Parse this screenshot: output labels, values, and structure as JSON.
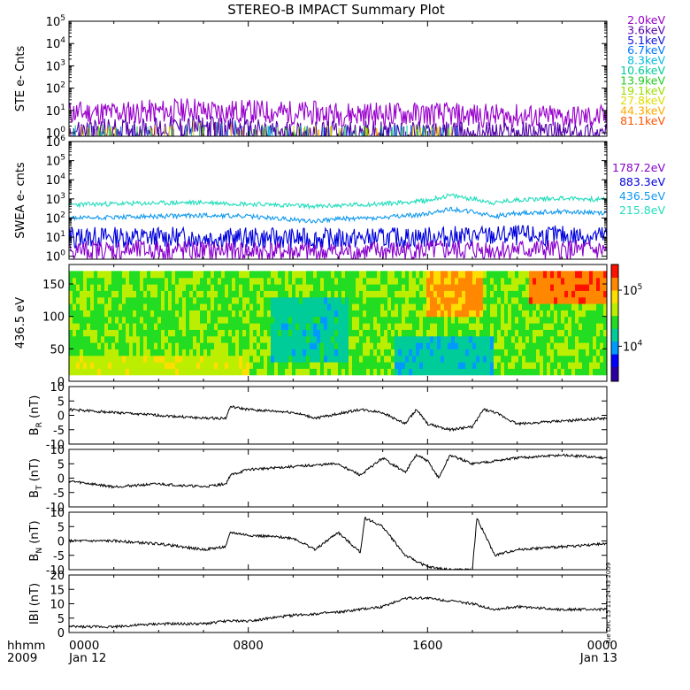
{
  "title": "STEREO-B IMPACT Summary Plot",
  "time_axis": {
    "row1_label": "hhmm",
    "row2_label": "2009",
    "ticks": [
      {
        "hhmm": "0000",
        "date": "Jan 12"
      },
      {
        "hhmm": "0800",
        "date": ""
      },
      {
        "hhmm": "1600",
        "date": ""
      },
      {
        "hhmm": "0000",
        "date": "Jan 13"
      }
    ],
    "range_hours": [
      0,
      24
    ]
  },
  "stamp": "Tue Dec 15 11:24:43 2009",
  "colors": {
    "frame": "#000000",
    "ste": [
      "#9900cc",
      "#5500aa",
      "#1111dd",
      "#0077ff",
      "#00bbdd",
      "#00cc99",
      "#22cc22",
      "#99dd00",
      "#dddd00",
      "#ffaa00",
      "#ff5500",
      "#cc0000"
    ],
    "swea": [
      "#8800cc",
      "#0000dd",
      "#1199ee",
      "#22ddbb"
    ],
    "colorbar": [
      "#2a00a0",
      "#0000ff",
      "#0099ff",
      "#00cc99",
      "#22dd22",
      "#bbee00",
      "#ffdd00",
      "#ff8800",
      "#ff1100"
    ]
  },
  "chart_data": [
    {
      "type": "line",
      "panel": "ste",
      "ylabel": "STE e- Cnts",
      "yscale": "log",
      "ylim": [
        0.7,
        100000
      ],
      "yticks": [
        {
          "base": "10",
          "exp": "0"
        },
        {
          "base": "10",
          "exp": "1"
        },
        {
          "base": "10",
          "exp": "2"
        },
        {
          "base": "10",
          "exp": "3"
        },
        {
          "base": "10",
          "exp": "4"
        },
        {
          "base": "10",
          "exp": "5"
        }
      ],
      "legend": [
        "2.0keV",
        "3.6keV",
        "5.1keV",
        "6.7keV",
        "8.3keV",
        "10.6keV",
        "13.9keV",
        "19.1keV",
        "27.8keV",
        "44.3keV",
        "81.1keV"
      ],
      "legend_colors": [
        "#9900cc",
        "#5500aa",
        "#1111dd",
        "#0077ff",
        "#00bbdd",
        "#00cc99",
        "#22cc22",
        "#99dd00",
        "#dddd00",
        "#ffaa00",
        "#ff5500"
      ],
      "series": [
        {
          "name": "2.0keV",
          "x": [
            0,
            2,
            4,
            5,
            5.5,
            6,
            8,
            10,
            12,
            14,
            16,
            18,
            20,
            22,
            24
          ],
          "y": [
            8,
            8,
            9,
            10,
            13,
            9,
            9,
            8,
            7,
            7,
            7,
            6,
            5.5,
            5,
            5
          ]
        },
        {
          "name": "3.6keV",
          "x": [
            0,
            2,
            4,
            6,
            8,
            10,
            12,
            14,
            16,
            18,
            20,
            22,
            24
          ],
          "y": [
            1.2,
            1.3,
            1.5,
            1.8,
            1.2,
            1,
            1,
            1,
            0.9,
            0.9,
            0.9,
            0.9,
            0.9
          ]
        }
      ]
    },
    {
      "type": "line",
      "panel": "swea",
      "ylabel": "SWEA e- cnts",
      "yscale": "log",
      "ylim": [
        0.7,
        1000000
      ],
      "yticks": [
        {
          "base": "10",
          "exp": "0"
        },
        {
          "base": "10",
          "exp": "1"
        },
        {
          "base": "10",
          "exp": "2"
        },
        {
          "base": "10",
          "exp": "3"
        },
        {
          "base": "10",
          "exp": "4"
        },
        {
          "base": "10",
          "exp": "5"
        },
        {
          "base": "10",
          "exp": "6"
        }
      ],
      "legend": [
        "1787.2eV",
        "883.3eV",
        "436.5eV",
        "215.8eV"
      ],
      "legend_colors": [
        "#8800cc",
        "#0000dd",
        "#1199ee",
        "#22ddbb"
      ],
      "series": [
        {
          "name": "215.8eV",
          "x": [
            0,
            2,
            4,
            6,
            8,
            10,
            11,
            12,
            14,
            16,
            17,
            18,
            19,
            20,
            22,
            24
          ],
          "y": [
            500,
            550,
            600,
            650,
            550,
            450,
            400,
            450,
            550,
            800,
            1500,
            1000,
            600,
            900,
            1100,
            900
          ]
        },
        {
          "name": "436.5eV",
          "x": [
            0,
            2,
            4,
            6,
            8,
            10,
            11,
            12,
            14,
            16,
            17,
            18,
            19,
            20,
            22,
            24
          ],
          "y": [
            100,
            110,
            120,
            140,
            120,
            80,
            70,
            90,
            100,
            160,
            300,
            200,
            120,
            180,
            220,
            180
          ]
        },
        {
          "name": "883.3eV",
          "x": [
            0,
            4,
            8,
            12,
            16,
            20,
            24
          ],
          "y": [
            10,
            10,
            9,
            8,
            10,
            12,
            11
          ]
        },
        {
          "name": "1787.2eV",
          "x": [
            0,
            4,
            8,
            12,
            16,
            20,
            24
          ],
          "y": [
            2,
            2,
            1.8,
            1.6,
            2,
            2.2,
            2
          ]
        }
      ]
    },
    {
      "type": "heatmap",
      "panel": "pad",
      "ylabel": "436.5 eV",
      "ylim": [
        0,
        180
      ],
      "yticks": [
        "0",
        "50",
        "100",
        "150"
      ],
      "colorbar": {
        "scale": "log",
        "ticks": [
          {
            "base": "10",
            "exp": "4"
          },
          {
            "base": "10",
            "exp": "5"
          }
        ]
      },
      "features": "pitch angle 10-170 deg; mostly green (~5e4), blue depletion near 90 deg around 10-11h, yellow-red near 180 deg at 17h and 21-24h"
    },
    {
      "type": "line",
      "panel": "br",
      "ylabel": "B",
      "ylabel_sub": "R",
      "yunit": "(nT)",
      "ylim": [
        -10,
        10
      ],
      "yticks": [
        "10",
        "5",
        "0",
        "-5",
        "-10"
      ],
      "series": [
        {
          "name": "",
          "x": [
            0,
            2,
            4,
            6,
            7,
            7.2,
            8,
            10,
            11,
            13,
            14,
            15,
            15.5,
            16,
            17,
            18,
            18.5,
            19,
            20,
            22,
            24
          ],
          "y": [
            2,
            1,
            0,
            -1,
            -1,
            3,
            2,
            1,
            -1,
            2,
            1,
            -3,
            2,
            -3,
            -5,
            -4,
            2,
            1,
            -3,
            -2,
            -1
          ]
        }
      ]
    },
    {
      "type": "line",
      "panel": "bt",
      "ylabel": "B",
      "ylabel_sub": "T",
      "yunit": "(nT)",
      "ylim": [
        -10,
        10
      ],
      "yticks": [
        "10",
        "5",
        "0",
        "-5",
        "-10"
      ],
      "series": [
        {
          "name": "",
          "x": [
            0,
            2,
            4,
            6,
            7,
            7.2,
            8,
            10,
            12,
            13,
            14,
            15,
            15.5,
            16,
            16.5,
            17,
            18,
            20,
            22,
            24
          ],
          "y": [
            -1,
            -3,
            -2,
            -3,
            -2,
            1,
            3,
            4,
            5,
            1,
            7,
            2,
            8,
            6,
            0,
            8,
            5,
            7,
            8,
            7
          ]
        }
      ]
    },
    {
      "type": "line",
      "panel": "bn",
      "ylabel": "B",
      "ylabel_sub": "N",
      "yunit": "(nT)",
      "ylim": [
        -10,
        10
      ],
      "yticks": [
        "10",
        "5",
        "0",
        "-5",
        "-10"
      ],
      "series": [
        {
          "name": "",
          "x": [
            0,
            2,
            4,
            6,
            7,
            7.2,
            8,
            10,
            11,
            12,
            13,
            13.2,
            14,
            15,
            16,
            17,
            18,
            18.2,
            19,
            20,
            22,
            24
          ],
          "y": [
            0,
            0,
            -1,
            -3,
            -2,
            3,
            2,
            1,
            -3,
            3,
            -4,
            8,
            5,
            -5,
            -9,
            -10,
            -10,
            8,
            -5,
            -3,
            -2,
            -1
          ]
        }
      ]
    },
    {
      "type": "line",
      "panel": "bmag",
      "ylabel": "IBI",
      "yunit": "(nT)",
      "ylim": [
        0,
        20
      ],
      "yticks": [
        "20",
        "15",
        "10",
        "5",
        "0"
      ],
      "series": [
        {
          "name": "",
          "x": [
            0,
            2,
            4,
            6,
            7,
            8,
            10,
            12,
            14,
            15,
            16,
            17,
            18,
            19,
            20,
            22,
            24
          ],
          "y": [
            2,
            2,
            3,
            3,
            4,
            4,
            6,
            7,
            9,
            12,
            12,
            11,
            10,
            8,
            9,
            8,
            8
          ]
        }
      ]
    }
  ]
}
